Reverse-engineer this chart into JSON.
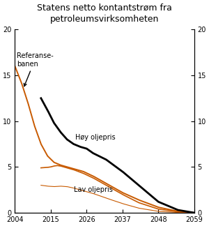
{
  "title_line1": "Statens netto kontantstrøm fra",
  "title_line2": "petroleumsvirksomheten",
  "x_start": 2004,
  "x_end": 2059,
  "ylim": [
    0,
    20
  ],
  "yticks": [
    0,
    5,
    10,
    15,
    20
  ],
  "xticks": [
    2004,
    2015,
    2026,
    2037,
    2048,
    2059
  ],
  "ref_color": "#C85A00",
  "hoy_color": "#000000",
  "lav_color": "#C85A00",
  "background_color": "#ffffff",
  "annotation_referanse": "Referanse-\nbanen",
  "annotation_hoy": "Høy oljepris",
  "annotation_lav": "Lav oljepris"
}
